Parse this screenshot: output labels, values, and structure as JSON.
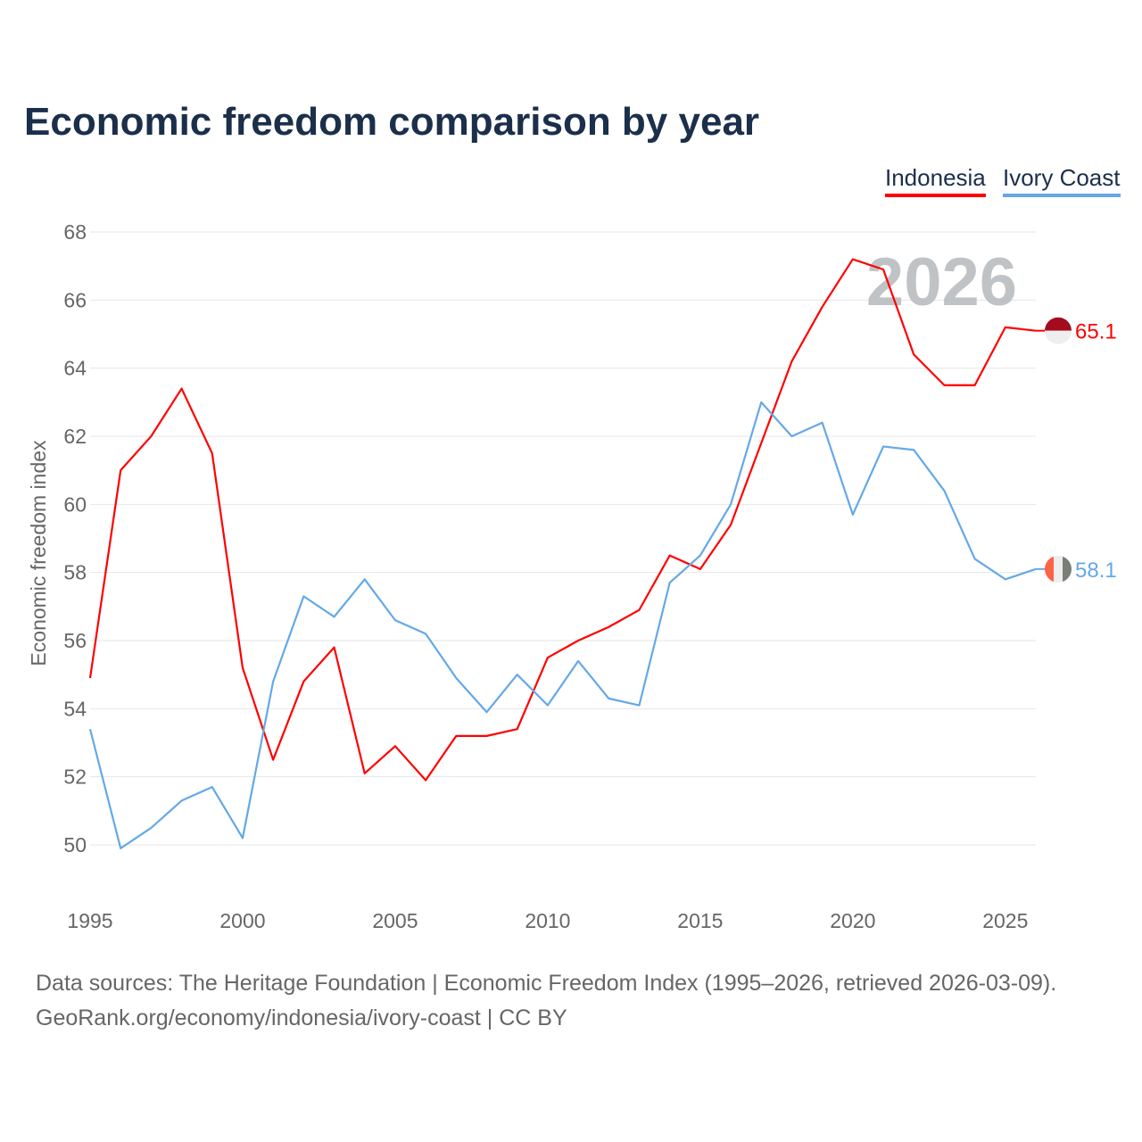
{
  "chart_data": {
    "type": "line",
    "title": "Economic freedom comparison by year",
    "xlabel": "",
    "ylabel": "Economic freedom index",
    "ylim": [
      50,
      68
    ],
    "xlim": [
      1995,
      2026
    ],
    "yticks": [
      50,
      52,
      54,
      56,
      58,
      60,
      62,
      64,
      66,
      68
    ],
    "xticks": [
      1995,
      2000,
      2005,
      2010,
      2015,
      2020,
      2025
    ],
    "grid": true,
    "legend_position": "top-right",
    "watermark_year": "2026",
    "x": [
      1995,
      1996,
      1997,
      1998,
      1999,
      2000,
      2001,
      2002,
      2003,
      2004,
      2005,
      2006,
      2007,
      2008,
      2009,
      2010,
      2011,
      2012,
      2013,
      2014,
      2015,
      2016,
      2017,
      2018,
      2019,
      2020,
      2021,
      2022,
      2023,
      2024,
      2025,
      2026
    ],
    "series": [
      {
        "name": "Indonesia",
        "color": "#ff0000",
        "end_label": "65.1",
        "values": [
          54.9,
          61.0,
          62.0,
          63.4,
          61.5,
          55.2,
          52.5,
          54.8,
          55.8,
          52.1,
          52.9,
          51.9,
          53.2,
          53.2,
          53.4,
          55.5,
          56.0,
          56.4,
          56.9,
          58.5,
          58.1,
          59.4,
          61.8,
          64.2,
          65.8,
          67.2,
          66.9,
          64.4,
          63.5,
          63.5,
          65.2,
          65.1
        ]
      },
      {
        "name": "Ivory Coast",
        "color": "#64a8e8",
        "end_label": "58.1",
        "values": [
          53.4,
          49.9,
          50.5,
          51.3,
          51.7,
          50.2,
          54.8,
          57.3,
          56.7,
          57.8,
          56.6,
          56.2,
          54.9,
          53.9,
          55.0,
          54.1,
          55.4,
          54.3,
          54.1,
          57.7,
          58.5,
          60.0,
          63.0,
          62.0,
          62.4,
          59.7,
          61.7,
          61.6,
          60.4,
          58.4,
          57.8,
          58.1
        ]
      }
    ]
  },
  "footer": {
    "source": "Data sources: The Heritage Foundation | Economic Freedom Index (1995–2026, retrieved 2026-03-09).",
    "credit": "GeoRank.org/economy/indonesia/ivory-coast | CC BY"
  }
}
